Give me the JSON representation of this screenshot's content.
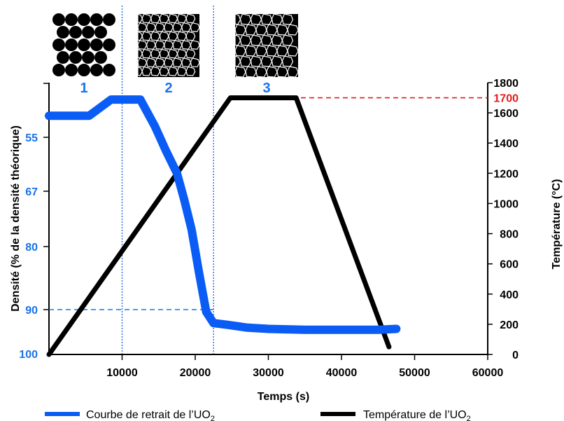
{
  "chart_data": {
    "type": "line",
    "xlabel": "Temps (s)",
    "y_left_label": "Densité (% de la densité théorique)",
    "y_right_label": "Température (°C)",
    "x_ticks": [
      10000,
      20000,
      30000,
      40000,
      50000,
      60000
    ],
    "xlim": [
      0,
      60000
    ],
    "y_left_ticks": [
      "55",
      "67",
      "80",
      "90",
      "100"
    ],
    "y_right_ticks": [
      0,
      200,
      400,
      600,
      800,
      1000,
      1200,
      1400,
      1600,
      1800
    ],
    "y_right_lim": [
      0,
      1800
    ],
    "highlight_label": "1700",
    "highlight_value": 1700,
    "highlight_color": "#e31a1c",
    "density_reference_label": "90",
    "stage_labels": [
      "1",
      "2",
      "3"
    ],
    "stage_boundaries_x": [
      10000,
      22500
    ],
    "series": [
      {
        "name": "Courbe de retrait de l’UO",
        "name_subscript": "2",
        "color": "#0a5cf5",
        "axis": "left",
        "x": [
          0,
          5500,
          8500,
          12500,
          14500,
          16000,
          17500,
          18500,
          19500,
          20500,
          21500,
          22500,
          24500,
          27000,
          30000,
          35000,
          40000,
          45000,
          47500
        ],
        "y": [
          53,
          53,
          51.5,
          51.5,
          54,
          58,
          63,
          69,
          76,
          84,
          90.5,
          93,
          93.4,
          94,
          94.3,
          94.5,
          94.5,
          94.5,
          94.3
        ]
      },
      {
        "name": "Température de l’UO",
        "name_subscript": "2",
        "color": "#000000",
        "axis": "right",
        "x": [
          0,
          24800,
          33800,
          46500
        ],
        "y": [
          0,
          1700,
          1700,
          50
        ]
      }
    ]
  }
}
